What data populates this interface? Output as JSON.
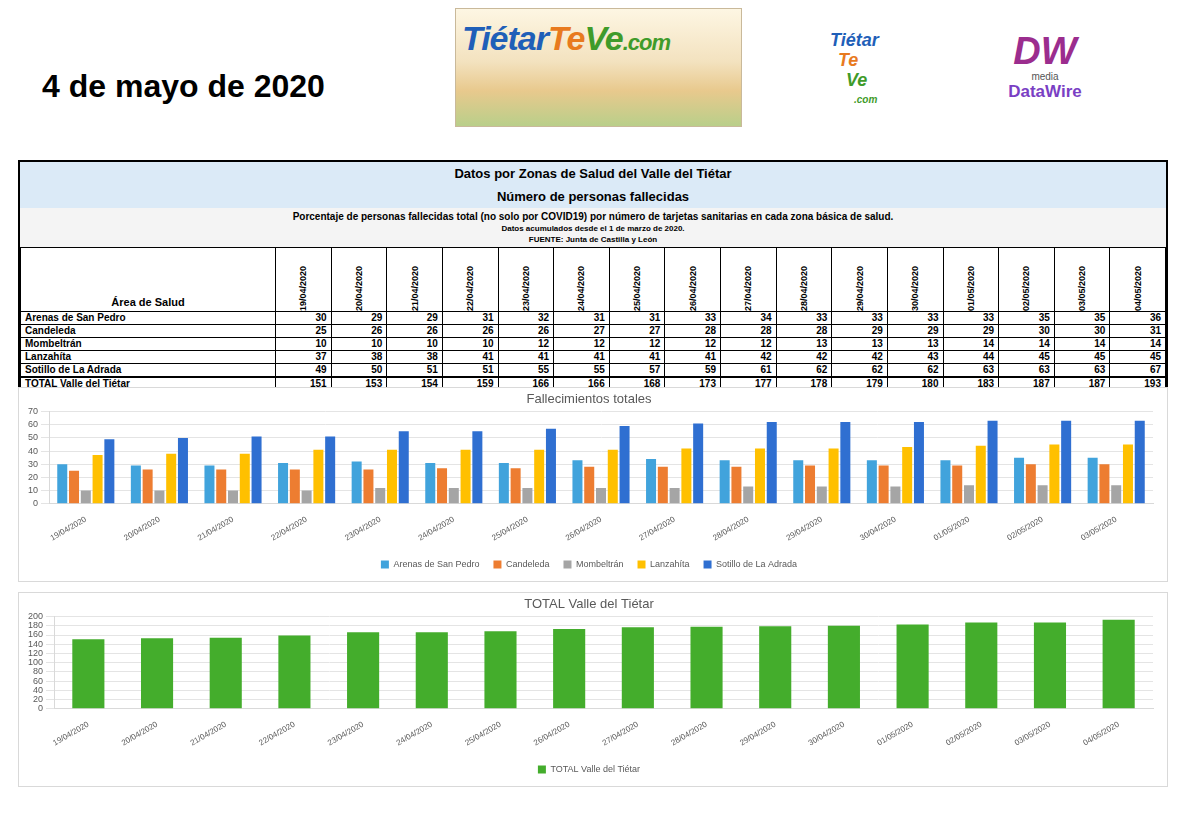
{
  "header": {
    "date": "4 de mayo de 2020",
    "logo_main": [
      "Tiétar",
      "Te",
      "Ve",
      ".com"
    ],
    "logo_small": [
      "Tiétar",
      "Te",
      "Ve",
      ".com"
    ],
    "logo_dw": [
      "DW",
      "media",
      "DataWire"
    ]
  },
  "table": {
    "title": [
      "Datos por Zonas de Salud del Valle del Tiétar",
      "Número de personas fallecidas"
    ],
    "notes": [
      "Porcentaje de personas fallecidas total (no solo por COVID19) por número de tarjetas sanitarias en cada zona básica de salud.",
      "Datos acumulados desde el 1 de marzo de 2020.",
      "FUENTE: Junta de Castilla y León"
    ],
    "header": [
      "Área de Salud",
      "19/04/2020",
      "20/04/2020",
      "21/04/2020",
      "22/04/2020",
      "23/04/2020",
      "24/04/2020",
      "25/04/2020",
      "26/04/2020",
      "27/04/2020",
      "28/04/2020",
      "29/04/2020",
      "30/04/2020",
      "01/05/2020",
      "02/05/2020",
      "03/05/2020",
      "04/05/2020"
    ],
    "rows": [
      [
        "Arenas de San Pedro",
        30,
        29,
        29,
        31,
        32,
        31,
        31,
        33,
        34,
        33,
        33,
        33,
        33,
        35,
        35,
        36
      ],
      [
        "Candeleda",
        25,
        26,
        26,
        26,
        26,
        27,
        27,
        28,
        28,
        28,
        29,
        29,
        29,
        30,
        30,
        31
      ],
      [
        "Mombeltrán",
        10,
        10,
        10,
        10,
        12,
        12,
        12,
        12,
        12,
        13,
        13,
        13,
        14,
        14,
        14,
        14
      ],
      [
        "Lanzahíta",
        37,
        38,
        38,
        41,
        41,
        41,
        41,
        41,
        42,
        42,
        42,
        43,
        44,
        45,
        45,
        45
      ],
      [
        "Sotillo de La Adrada",
        49,
        50,
        51,
        51,
        55,
        55,
        57,
        59,
        61,
        62,
        62,
        62,
        63,
        63,
        63,
        67
      ],
      [
        "TOTAL Valle del Tiétar",
        151,
        153,
        154,
        159,
        166,
        166,
        168,
        173,
        177,
        178,
        179,
        180,
        183,
        187,
        187,
        193
      ]
    ]
  },
  "chart_data": [
    {
      "type": "bar",
      "title": "Fallecimientos totales",
      "categories": [
        "19/04/2020",
        "20/04/2020",
        "21/04/2020",
        "22/04/2020",
        "23/04/2020",
        "24/04/2020",
        "25/04/2020",
        "26/04/2020",
        "27/04/2020",
        "28/04/2020",
        "29/04/2020",
        "30/04/2020",
        "01/05/2020",
        "02/05/2020",
        "03/05/2020"
      ],
      "series": [
        {
          "name": "Arenas de San Pedro",
          "color": "#41a3dc",
          "values": [
            30,
            29,
            29,
            31,
            32,
            31,
            31,
            33,
            34,
            33,
            33,
            33,
            33,
            35,
            35
          ]
        },
        {
          "name": "Candeleda",
          "color": "#ed7d31",
          "values": [
            25,
            26,
            26,
            26,
            26,
            27,
            27,
            28,
            28,
            28,
            29,
            29,
            29,
            30,
            30
          ]
        },
        {
          "name": "Mombeltrán",
          "color": "#a5a5a5",
          "values": [
            10,
            10,
            10,
            10,
            12,
            12,
            12,
            12,
            12,
            13,
            13,
            13,
            14,
            14,
            14
          ]
        },
        {
          "name": "Lanzahíta",
          "color": "#ffc000",
          "values": [
            37,
            38,
            38,
            41,
            41,
            41,
            41,
            41,
            42,
            42,
            42,
            43,
            44,
            45,
            45
          ]
        },
        {
          "name": "Sotillo de La Adrada",
          "color": "#2f6fd1",
          "values": [
            49,
            50,
            51,
            51,
            55,
            55,
            57,
            59,
            61,
            62,
            62,
            62,
            63,
            63,
            63
          ]
        }
      ],
      "ylim": [
        0,
        70
      ],
      "yticks": [
        0,
        10,
        20,
        30,
        40,
        50,
        60,
        70
      ],
      "grid": true,
      "legend": "bottom"
    },
    {
      "type": "bar",
      "title": "TOTAL Valle del Tiétar",
      "categories": [
        "19/04/2020",
        "20/04/2020",
        "21/04/2020",
        "22/04/2020",
        "23/04/2020",
        "24/04/2020",
        "25/04/2020",
        "26/04/2020",
        "27/04/2020",
        "28/04/2020",
        "29/04/2020",
        "30/04/2020",
        "01/05/2020",
        "02/05/2020",
        "03/05/2020",
        "04/05/2020"
      ],
      "series": [
        {
          "name": "TOTAL Valle del Tiétar",
          "color": "#44ad2c",
          "values": [
            151,
            153,
            154,
            159,
            166,
            166,
            168,
            173,
            177,
            178,
            179,
            180,
            183,
            187,
            187,
            193
          ]
        }
      ],
      "ylim": [
        0,
        200
      ],
      "yticks": [
        0,
        20,
        40,
        60,
        80,
        100,
        120,
        140,
        160,
        180,
        200
      ],
      "grid": true,
      "legend": "bottom"
    }
  ]
}
